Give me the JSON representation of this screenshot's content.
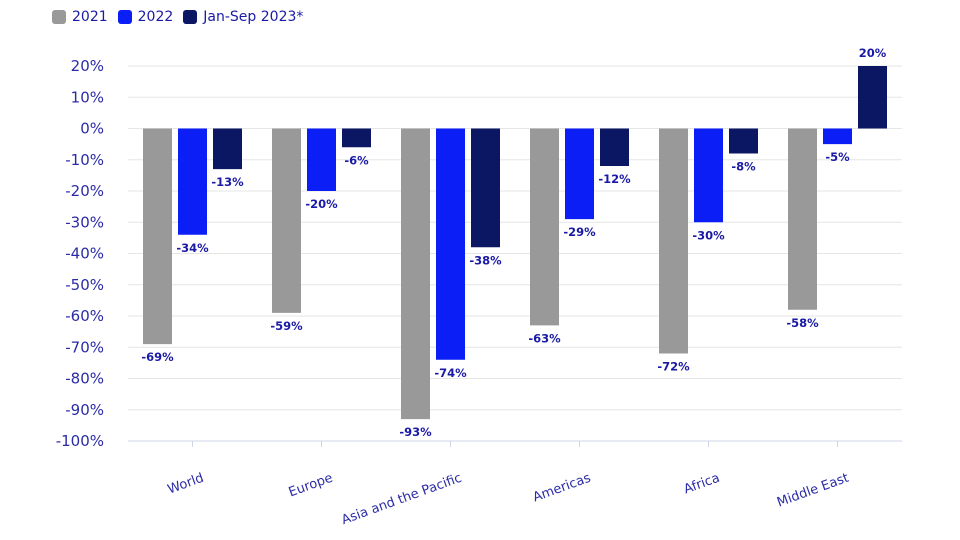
{
  "chart_data": {
    "type": "bar",
    "categories": [
      "World",
      "Europe",
      "Asia and the Pacific",
      "Americas",
      "Africa",
      "Middle East"
    ],
    "series": [
      {
        "name": "2021",
        "color": "#999999",
        "values": [
          -69,
          -59,
          -93,
          -63,
          -72,
          -58
        ]
      },
      {
        "name": "2022",
        "color": "#0a1ef5",
        "values": [
          -34,
          -20,
          -74,
          -29,
          -30,
          -5
        ]
      },
      {
        "name": "Jan-Sep 2023*",
        "color": "#0b1763",
        "values": [
          -13,
          -6,
          -38,
          -12,
          -8,
          20
        ]
      }
    ],
    "data_labels": [
      [
        "-69%",
        "-59%",
        "-93%",
        "-63%",
        "-72%",
        "-58%"
      ],
      [
        "-34%",
        "-20%",
        "-74%",
        "-29%",
        "-30%",
        "-5%"
      ],
      [
        "-13%",
        "-6%",
        "-38%",
        "-12%",
        "-8%",
        "20%"
      ]
    ],
    "y_ticks": [
      20,
      10,
      0,
      -10,
      -20,
      -30,
      -40,
      -50,
      -60,
      -70,
      -80,
      -90,
      -100
    ],
    "y_tick_labels": [
      "20%",
      "10%",
      "0%",
      "-10%",
      "-20%",
      "-30%",
      "-40%",
      "-50%",
      "-60%",
      "-70%",
      "-80%",
      "-90%",
      "-100%"
    ],
    "ylim": [
      -100,
      20
    ],
    "grid": true,
    "legend_position": "top-left",
    "title": "",
    "xlabel": "",
    "ylabel": ""
  }
}
